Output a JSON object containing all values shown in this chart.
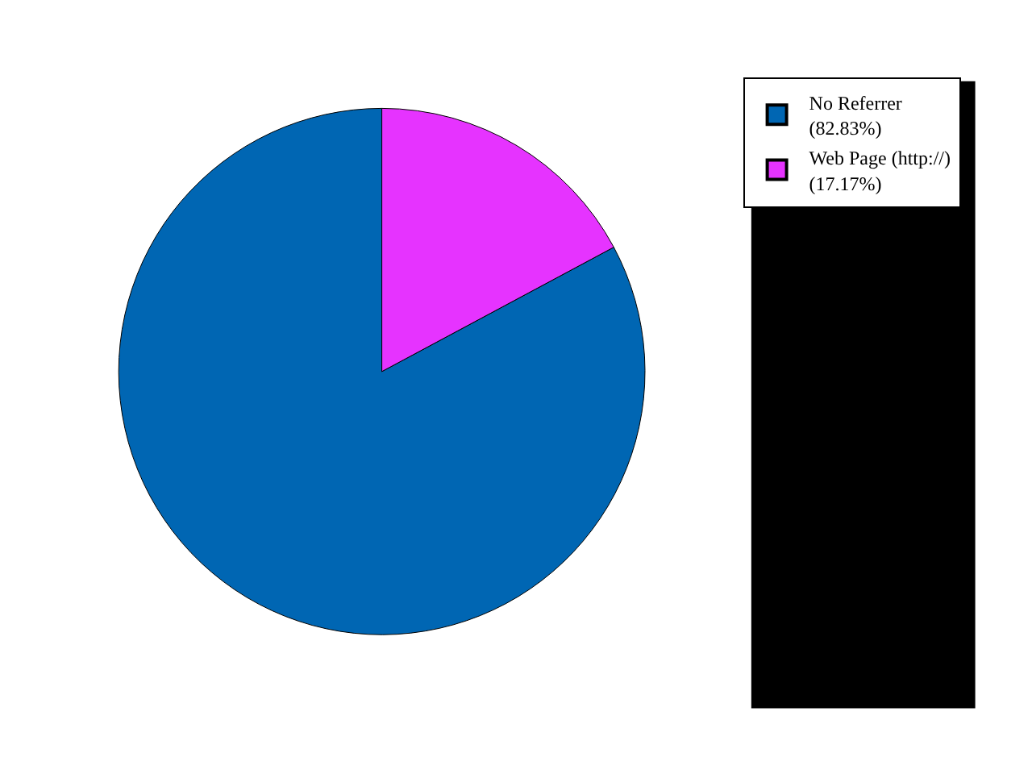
{
  "chart_data": {
    "type": "pie",
    "categories": [
      "No Referrer",
      "Web Page (http://)"
    ],
    "values": [
      82.83,
      17.17
    ],
    "value_labels": [
      "(82.83%)",
      "(17.17%)"
    ],
    "colors": [
      "#0066b3",
      "#e633ff"
    ],
    "legend": "right"
  }
}
